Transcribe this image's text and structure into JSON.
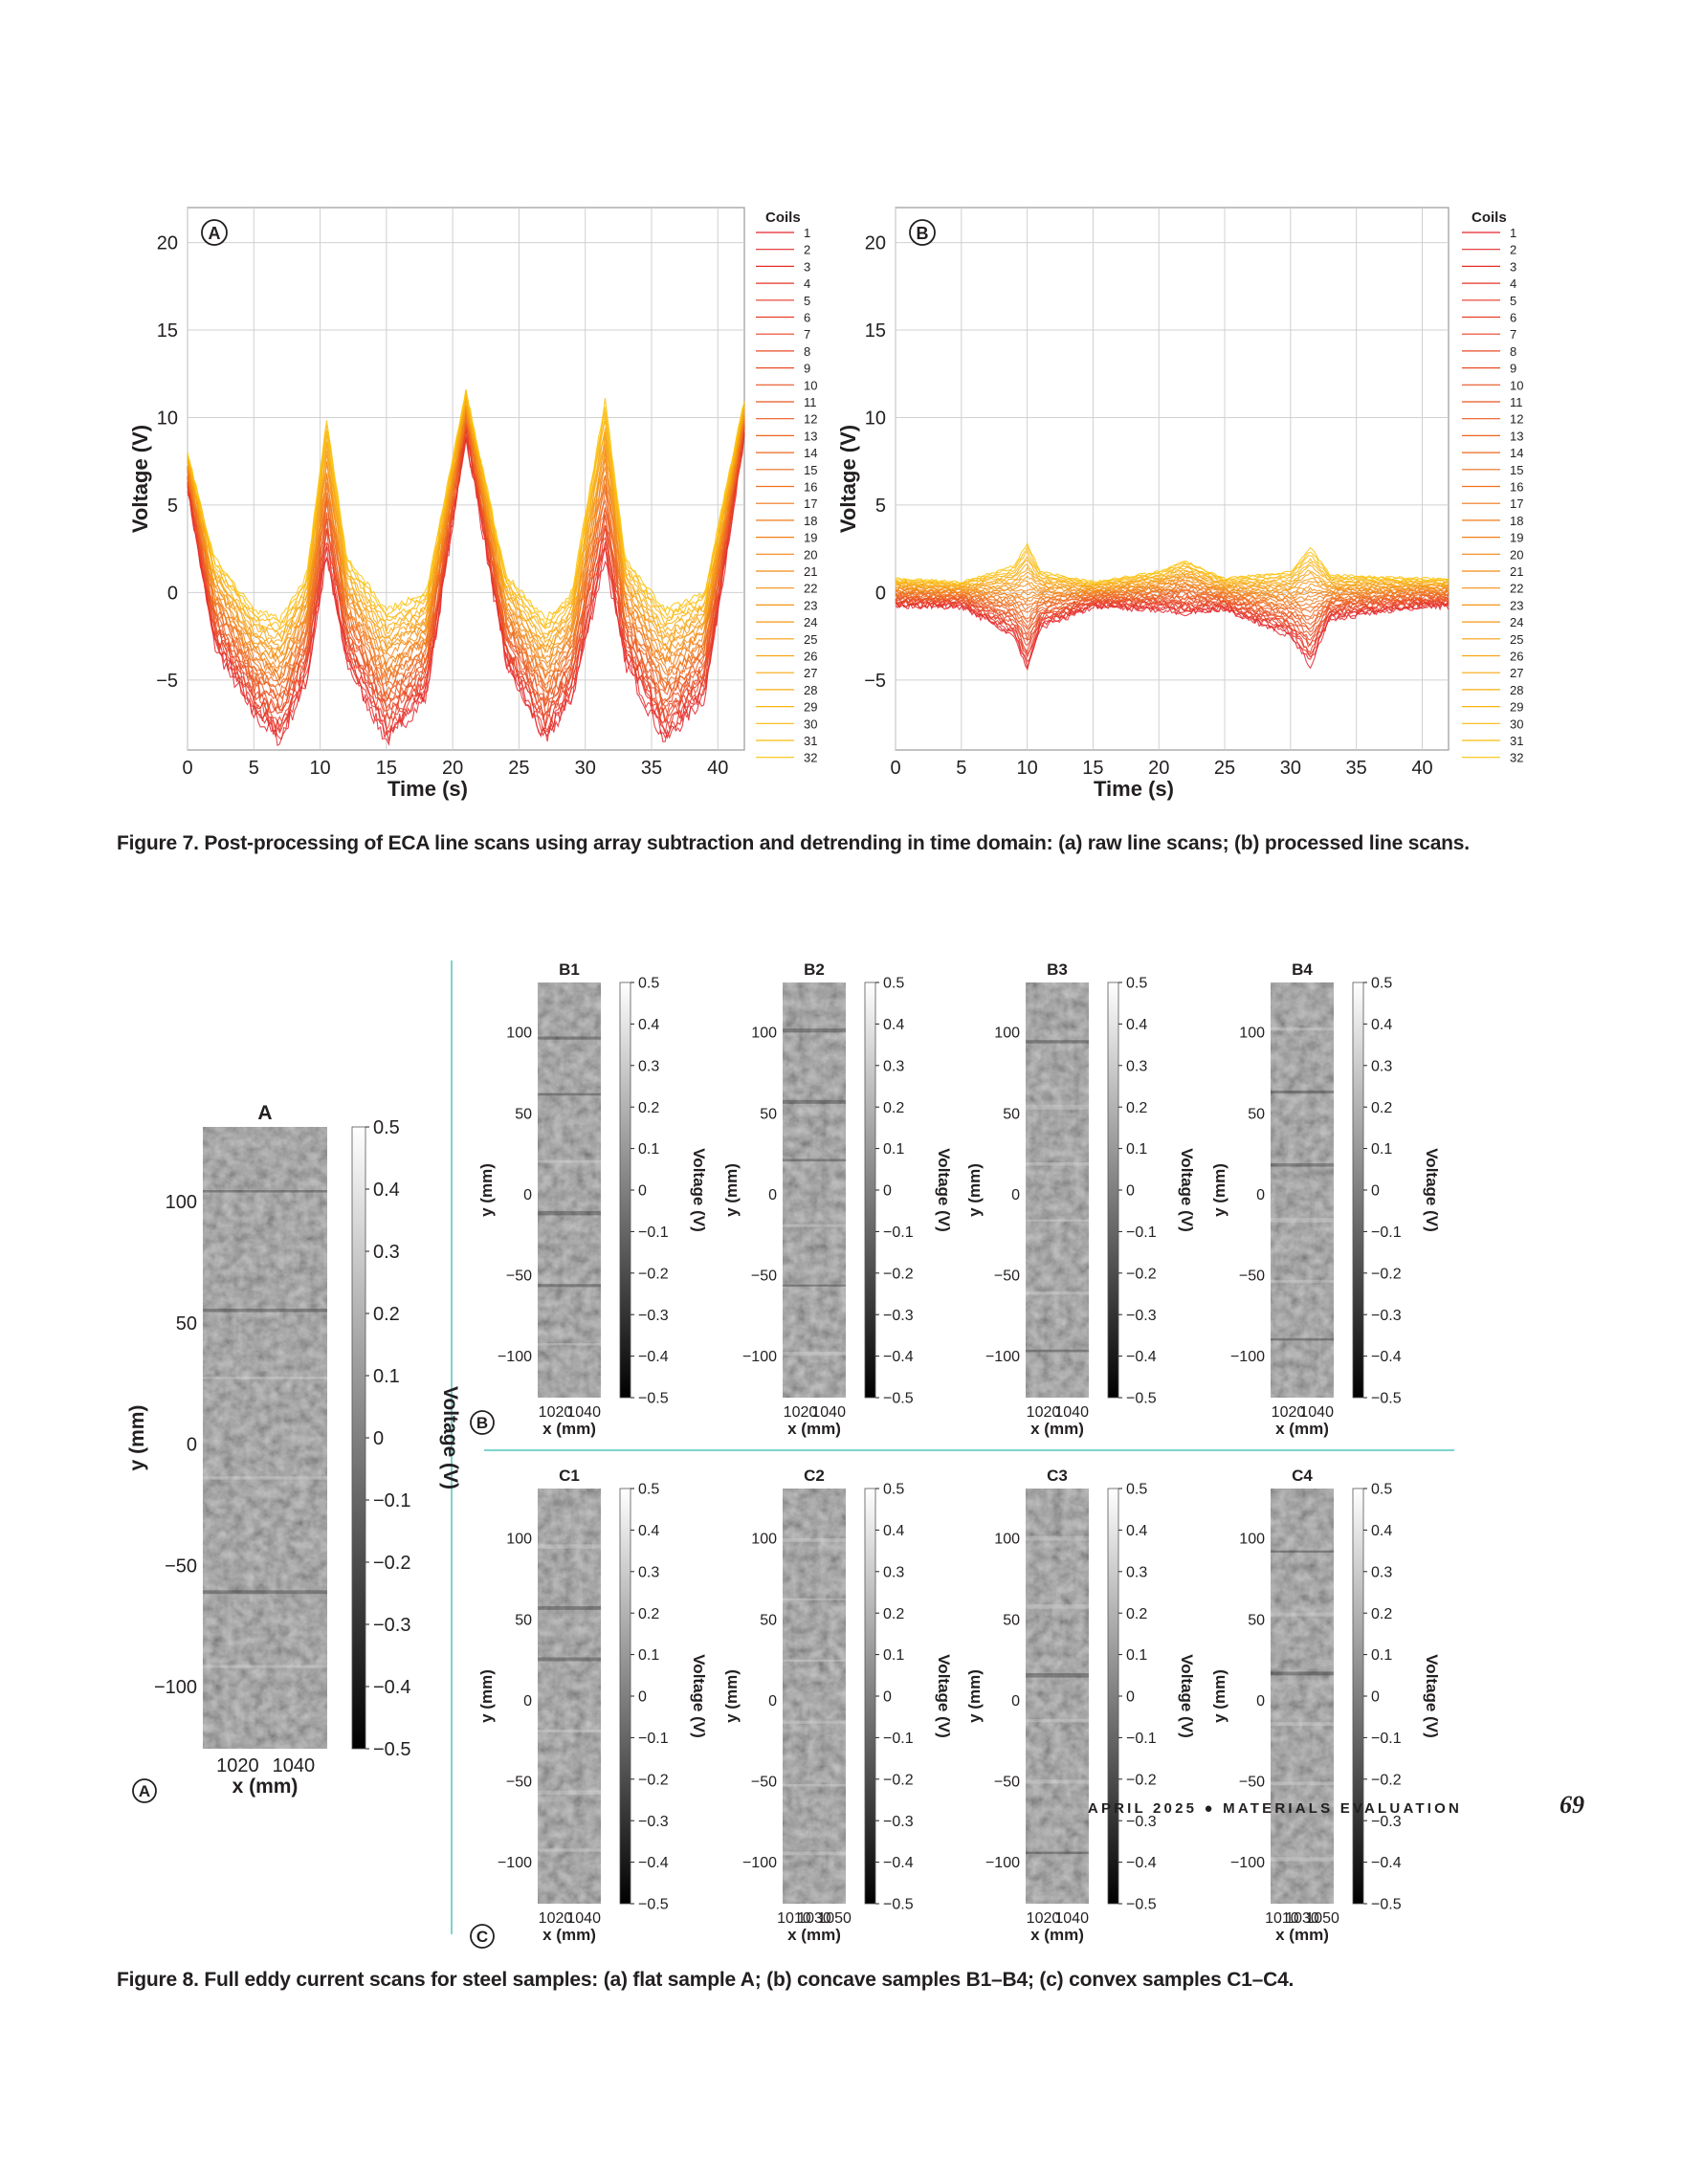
{
  "figure7": {
    "caption": "Figure 7. Post-processing of ECA line scans using array subtraction and detrending in time domain: (a) raw line scans; (b) processed line scans.",
    "panels": [
      {
        "letter": "A",
        "xlabel": "Time (s)",
        "ylabel": "Voltage (V)",
        "legend_title": "Coils"
      },
      {
        "letter": "B",
        "xlabel": "Time (s)",
        "ylabel": "Voltage (V)",
        "legend_title": "Coils"
      }
    ]
  },
  "figure8": {
    "caption": "Figure 8. Full eddy current scans for steel samples: (a) flat sample A; (b) concave samples B1–B4; (c) convex samples C1–C4.",
    "panel_letters": [
      "A",
      "B",
      "C"
    ],
    "colorbar_ticks": [
      "0.5",
      "0.4",
      "0.3",
      "0.2",
      "0.1",
      "0",
      "−0.1",
      "−0.2",
      "−0.3",
      "−0.4",
      "−0.5"
    ],
    "colorbar_label": "Voltage (V)",
    "xlabel": "x (mm)",
    "ylabel": "y (mm)"
  },
  "footer": {
    "journal": "APRIL 2025 ● MATERIALS EVALUATION",
    "page_number": "69"
  },
  "chart_data": [
    {
      "type": "line",
      "panel": "A",
      "title": "",
      "xlabel": "Time (s)",
      "ylabel": "Voltage (V)",
      "xlim": [
        0,
        42
      ],
      "ylim": [
        -9,
        22
      ],
      "xticks": [
        0,
        5,
        10,
        15,
        20,
        25,
        30,
        35,
        40
      ],
      "yticks": [
        -5,
        0,
        5,
        10,
        15,
        20
      ],
      "grid": true,
      "legend": {
        "title": "Coils",
        "placement": "right",
        "entries": [
          "1",
          "2",
          "3",
          "4",
          "5",
          "6",
          "7",
          "8",
          "9",
          "10",
          "11",
          "12",
          "13",
          "14",
          "15",
          "16",
          "17",
          "18",
          "19",
          "20",
          "21",
          "22",
          "23",
          "24",
          "25",
          "26",
          "27",
          "28",
          "29",
          "30",
          "31",
          "32"
        ]
      },
      "colors": {
        "first_coil": "#e3242b",
        "last_coil": "#fcc30b"
      },
      "approx_envelope": {
        "x": [
          0,
          2,
          5,
          7,
          9,
          10.5,
          12,
          15,
          18,
          21,
          24,
          27,
          29,
          31.5,
          33,
          36,
          39,
          42
        ],
        "upper": [
          8,
          2,
          -1,
          -1.5,
          1,
          10,
          2,
          -1,
          0,
          11.5,
          1,
          -1.5,
          0,
          11,
          2,
          -1,
          0,
          11
        ],
        "lower": [
          6,
          -3,
          -7,
          -8.5,
          -5,
          2,
          -4,
          -8.5,
          -6,
          9,
          -4,
          -8.5,
          -6,
          2,
          -4,
          -8.5,
          -6,
          9
        ]
      }
    },
    {
      "type": "line",
      "panel": "B",
      "title": "",
      "xlabel": "Time (s)",
      "ylabel": "Voltage (V)",
      "xlim": [
        0,
        42
      ],
      "ylim": [
        -9,
        22
      ],
      "xticks": [
        0,
        5,
        10,
        15,
        20,
        25,
        30,
        35,
        40
      ],
      "yticks": [
        -5,
        0,
        5,
        10,
        15,
        20
      ],
      "grid": true,
      "legend": {
        "title": "Coils",
        "placement": "right",
        "entries": [
          "1",
          "2",
          "3",
          "4",
          "5",
          "6",
          "7",
          "8",
          "9",
          "10",
          "11",
          "12",
          "13",
          "14",
          "15",
          "16",
          "17",
          "18",
          "19",
          "20",
          "21",
          "22",
          "23",
          "24",
          "25",
          "26",
          "27",
          "28",
          "29",
          "30",
          "31",
          "32"
        ]
      },
      "colors": {
        "first_coil": "#e3242b",
        "last_coil": "#fcc30b"
      },
      "approx_envelope": {
        "x": [
          0,
          5,
          9,
          10,
          11,
          15,
          20,
          22,
          25,
          30,
          31.5,
          33,
          40,
          42
        ],
        "upper": [
          0.8,
          0.6,
          1.5,
          2.8,
          1.2,
          0.6,
          1.2,
          1.8,
          0.8,
          1.2,
          2.6,
          1,
          0.8,
          0.8
        ],
        "lower": [
          -0.8,
          -0.8,
          -2.5,
          -4.5,
          -2,
          -0.8,
          -1,
          -1.2,
          -1,
          -2.5,
          -4.2,
          -1.5,
          -0.8,
          -0.8
        ]
      }
    },
    {
      "type": "heatmap",
      "panel_group": "A",
      "maps": [
        {
          "label": "A",
          "xticks": [
            "1020",
            "1040"
          ],
          "yticks": [
            "100",
            "50",
            "0",
            "−50",
            "−100"
          ],
          "colorbar_range": [
            -0.5,
            0.5
          ]
        }
      ]
    },
    {
      "type": "heatmap",
      "panel_group": "B",
      "maps": [
        {
          "label": "B1",
          "xticks": [
            "1020",
            "1040"
          ],
          "yticks": [
            "100",
            "50",
            "0",
            "−50",
            "−100"
          ],
          "colorbar_range": [
            -0.5,
            0.5
          ]
        },
        {
          "label": "B2",
          "xticks": [
            "1020",
            "1040"
          ],
          "yticks": [
            "100",
            "50",
            "0",
            "−50",
            "−100"
          ],
          "colorbar_range": [
            -0.5,
            0.5
          ]
        },
        {
          "label": "B3",
          "xticks": [
            "1020",
            "1040"
          ],
          "yticks": [
            "100",
            "50",
            "0",
            "−50",
            "−100"
          ],
          "colorbar_range": [
            -0.5,
            0.5
          ]
        },
        {
          "label": "B4",
          "xticks": [
            "1020",
            "1040"
          ],
          "yticks": [
            "100",
            "50",
            "0",
            "−50",
            "−100"
          ],
          "colorbar_range": [
            -0.5,
            0.5
          ]
        }
      ]
    },
    {
      "type": "heatmap",
      "panel_group": "C",
      "maps": [
        {
          "label": "C1",
          "xticks": [
            "1020",
            "1040"
          ],
          "yticks": [
            "100",
            "50",
            "0",
            "−50",
            "−100"
          ],
          "colorbar_range": [
            -0.5,
            0.5
          ]
        },
        {
          "label": "C2",
          "xticks": [
            "1010",
            "1030",
            "1050"
          ],
          "yticks": [
            "100",
            "50",
            "0",
            "−50",
            "−100"
          ],
          "colorbar_range": [
            -0.5,
            0.5
          ]
        },
        {
          "label": "C3",
          "xticks": [
            "1020",
            "1040"
          ],
          "yticks": [
            "100",
            "50",
            "0",
            "−50",
            "−100"
          ],
          "colorbar_range": [
            -0.5,
            0.5
          ]
        },
        {
          "label": "C4",
          "xticks": [
            "1010",
            "1030",
            "1050"
          ],
          "yticks": [
            "100",
            "50",
            "0",
            "−50",
            "−100"
          ],
          "colorbar_range": [
            -0.5,
            0.5
          ]
        }
      ]
    }
  ]
}
